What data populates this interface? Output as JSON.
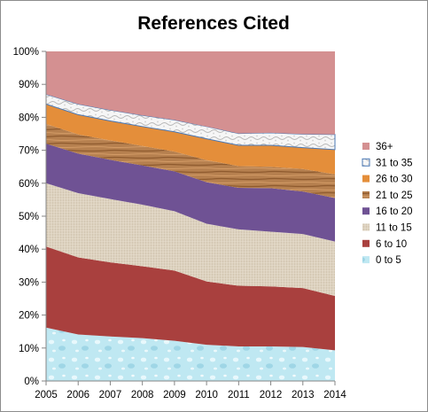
{
  "chart_data": {
    "type": "area",
    "stacked": true,
    "percent": true,
    "title": "References Cited",
    "xlabel": "",
    "ylabel": "",
    "ylim": [
      0,
      100
    ],
    "yticks": [
      "0%",
      "10%",
      "20%",
      "30%",
      "40%",
      "50%",
      "60%",
      "70%",
      "80%",
      "90%",
      "100%"
    ],
    "x": [
      "2005",
      "2006",
      "2007",
      "2008",
      "2009",
      "2010",
      "2011",
      "2012",
      "2013",
      "2014"
    ],
    "grid": false,
    "legend_position": "right",
    "series": [
      {
        "name": "0 to 5",
        "color": "#b7e4ef",
        "values": [
          16.2,
          14.1,
          13.5,
          13.0,
          12.2,
          11.0,
          10.5,
          10.5,
          10.3,
          9.3
        ]
      },
      {
        "name": "6 to 10",
        "color": "#a9403e",
        "values": [
          24.6,
          23.4,
          22.5,
          21.8,
          21.3,
          19.2,
          18.4,
          18.2,
          17.9,
          16.5
        ]
      },
      {
        "name": "11 to 15",
        "color": "#ddd2bf",
        "values": [
          19.2,
          19.5,
          19.2,
          18.7,
          18.0,
          17.5,
          17.1,
          16.6,
          16.4,
          16.5
        ]
      },
      {
        "name": "16 to 20",
        "color": "#6f5294",
        "values": [
          12.0,
          12.0,
          11.9,
          11.9,
          12.1,
          12.6,
          12.6,
          13.2,
          12.9,
          13.2
        ]
      },
      {
        "name": "21 to 25",
        "color": "#b6804f",
        "values": [
          6.0,
          5.8,
          5.9,
          5.9,
          6.0,
          6.7,
          6.6,
          6.5,
          6.8,
          7.2
        ]
      },
      {
        "name": "26 to 30",
        "color": "#e48e3a",
        "values": [
          6.0,
          6.0,
          5.9,
          5.9,
          6.0,
          6.5,
          6.3,
          6.5,
          6.5,
          7.5
        ]
      },
      {
        "name": "31 to 35",
        "color": "#f6f6f6",
        "values": [
          3.0,
          3.2,
          3.3,
          3.4,
          3.6,
          3.7,
          3.6,
          3.8,
          4.1,
          4.6
        ]
      },
      {
        "name": "36+",
        "color": "#d49091",
        "values": [
          13.0,
          16.0,
          17.8,
          19.4,
          20.8,
          22.8,
          24.9,
          24.7,
          25.1,
          25.2
        ]
      }
    ],
    "legend_order": [
      "36+",
      "31 to 35",
      "26 to 30",
      "21 to 25",
      "16 to 20",
      "11 to 15",
      "6 to 10",
      "0 to 5"
    ]
  }
}
